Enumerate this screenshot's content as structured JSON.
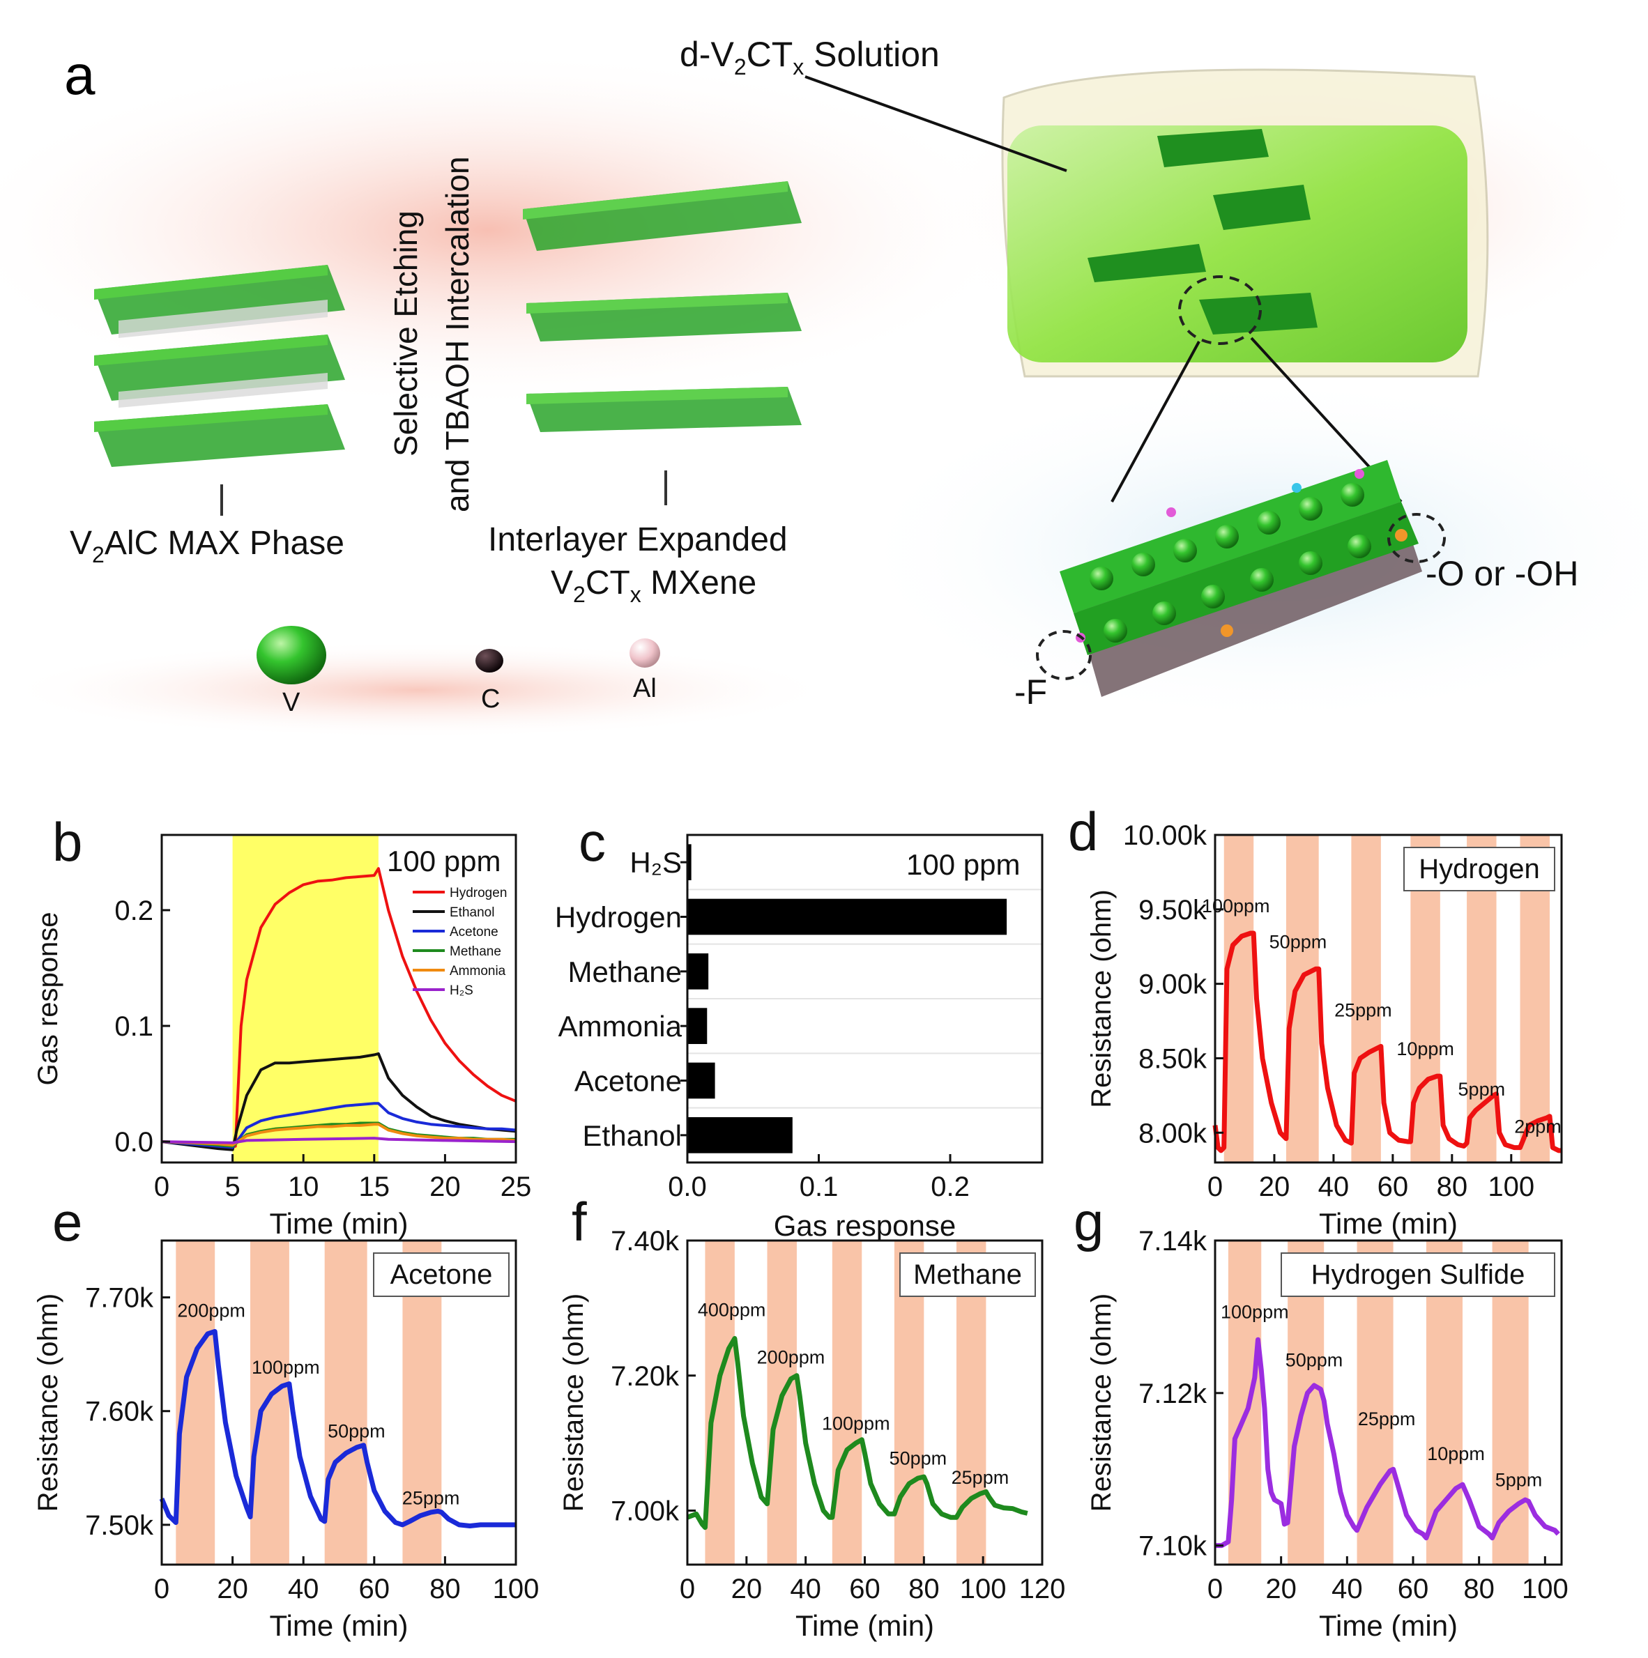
{
  "schematic": {
    "panel_label": "a",
    "solution_label": {
      "prefix": "d-V",
      "sub1": "2",
      "mid": "CT",
      "sub2": "x",
      "suffix": " Solution"
    },
    "max_phase_label": {
      "prefix": "V",
      "sub": "2",
      "suffix": "AlC MAX Phase"
    },
    "step_label_1": "Selective Etching",
    "step_label_2": "and TBAOH Intercalation",
    "mxene_label_1": "Interlayer Expanded",
    "mxene_label_2": {
      "prefix": "V",
      "sub1": "2",
      "mid": "CT",
      "sub2": "x",
      "suffix": " MXene"
    },
    "terminal_o_oh": "-O or -OH",
    "terminal_f": "-F",
    "legend": [
      {
        "symbol": "V",
        "color": "#2fb82f"
      },
      {
        "symbol": "C",
        "color": "#1a0c10"
      },
      {
        "symbol": "Al",
        "color": "#f3c9cf"
      }
    ]
  },
  "chart_data": [
    {
      "panel": "b",
      "type": "line",
      "title": "100 ppm",
      "xlabel": "Time (min)",
      "ylabel": "Gas response",
      "xlim": [
        0,
        25
      ],
      "ylim": [
        -0.018,
        0.265
      ],
      "xticks": [
        0,
        5,
        10,
        15,
        20,
        25
      ],
      "yticks": [
        0.0,
        0.1,
        0.2
      ],
      "ytick_labels": [
        "0.0",
        "0.1",
        "0.2"
      ],
      "highlight_range": [
        5,
        15.3
      ],
      "highlight_color": "#ffff66",
      "legend": [
        "Hydrogen",
        "Ethanol",
        "Acetone",
        "Methane",
        "Ammonia",
        "H₂S"
      ],
      "series": [
        {
          "name": "Hydrogen",
          "color": "#ee1111",
          "x": [
            0,
            2,
            4,
            5.2,
            5.6,
            6,
            7,
            8,
            9,
            10,
            11,
            12,
            13,
            14,
            15,
            15.3,
            16,
            17,
            18,
            19,
            20,
            21,
            22,
            23,
            24,
            25
          ],
          "y": [
            0,
            -0.002,
            -0.005,
            -0.004,
            0.1,
            0.14,
            0.185,
            0.205,
            0.215,
            0.222,
            0.225,
            0.226,
            0.228,
            0.229,
            0.23,
            0.236,
            0.2,
            0.16,
            0.13,
            0.105,
            0.085,
            0.07,
            0.058,
            0.048,
            0.04,
            0.035
          ]
        },
        {
          "name": "Ethanol",
          "color": "#111111",
          "x": [
            0,
            2,
            4,
            5,
            5.3,
            6,
            7,
            8,
            9,
            10,
            11,
            12,
            13,
            14,
            15,
            15.3,
            16,
            17,
            18,
            19,
            20,
            21,
            22,
            23,
            24,
            25
          ],
          "y": [
            0,
            -0.003,
            -0.006,
            -0.007,
            0.01,
            0.04,
            0.062,
            0.068,
            0.068,
            0.069,
            0.07,
            0.071,
            0.072,
            0.073,
            0.075,
            0.076,
            0.055,
            0.04,
            0.03,
            0.022,
            0.018,
            0.015,
            0.013,
            0.011,
            0.01,
            0.009
          ]
        },
        {
          "name": "Acetone",
          "color": "#1a2ad8",
          "x": [
            0,
            2,
            4,
            5,
            6,
            7,
            8,
            9,
            10,
            11,
            12,
            13,
            14,
            15,
            15.3,
            16,
            17,
            18,
            19,
            20,
            21,
            22,
            23,
            24,
            25
          ],
          "y": [
            0,
            -0.002,
            -0.004,
            -0.005,
            0.012,
            0.018,
            0.021,
            0.023,
            0.025,
            0.027,
            0.029,
            0.031,
            0.032,
            0.033,
            0.033,
            0.025,
            0.02,
            0.017,
            0.015,
            0.014,
            0.013,
            0.012,
            0.011,
            0.011,
            0.01
          ]
        },
        {
          "name": "Methane",
          "color": "#1e8a1e",
          "x": [
            0,
            2,
            4,
            5,
            6,
            7,
            8,
            9,
            10,
            11,
            12,
            13,
            14,
            15,
            15.3,
            16,
            17,
            18,
            19,
            20,
            21,
            22,
            23,
            24,
            25
          ],
          "y": [
            0,
            -0.001,
            -0.003,
            -0.004,
            0.006,
            0.009,
            0.011,
            0.012,
            0.013,
            0.014,
            0.015,
            0.015,
            0.016,
            0.016,
            0.016,
            0.011,
            0.008,
            0.006,
            0.005,
            0.004,
            0.003,
            0.003,
            0.002,
            0.002,
            0.002
          ]
        },
        {
          "name": "Ammonia",
          "color": "#f08a10",
          "x": [
            0,
            2,
            4,
            5,
            6,
            7,
            8,
            9,
            10,
            11,
            12,
            13,
            14,
            15,
            15.3,
            16,
            17,
            18,
            19,
            20,
            21,
            22,
            23,
            24,
            25
          ],
          "y": [
            0,
            -0.001,
            -0.002,
            -0.003,
            0.005,
            0.008,
            0.01,
            0.011,
            0.012,
            0.013,
            0.013,
            0.014,
            0.014,
            0.015,
            0.015,
            0.01,
            0.007,
            0.005,
            0.004,
            0.003,
            0.003,
            0.002,
            0.002,
            0.002,
            0.001
          ]
        },
        {
          "name": "H₂S",
          "color": "#9a22cc",
          "x": [
            0,
            5,
            6,
            10,
            15,
            16,
            20,
            25
          ],
          "y": [
            0,
            -0.001,
            0.001,
            0.002,
            0.003,
            0.002,
            0.001,
            0.0
          ]
        }
      ]
    },
    {
      "panel": "c",
      "type": "bar",
      "orientation": "horizontal",
      "title": "100 ppm",
      "xlabel": "Gas response",
      "xlim": [
        0,
        0.27
      ],
      "xticks": [
        0.0,
        0.1,
        0.2
      ],
      "xtick_labels": [
        "0.0",
        "0.1",
        "0.2"
      ],
      "categories": [
        "H₂S",
        "Hydrogen",
        "Methane",
        "Ammonia",
        "Acetone",
        "Ethanol"
      ],
      "values": [
        0.003,
        0.243,
        0.016,
        0.015,
        0.021,
        0.08
      ],
      "color": "#000000"
    },
    {
      "panel": "d",
      "type": "line",
      "title": "Hydrogen",
      "color": "#ee1111",
      "xlabel": "Time (min)",
      "ylabel": "Resistance (ohm)",
      "xlim": [
        0,
        117
      ],
      "ylim": [
        7800,
        10000
      ],
      "xticks": [
        0,
        20,
        40,
        60,
        80,
        100
      ],
      "yticks": [
        8000,
        8500,
        9000,
        9500,
        10000
      ],
      "ytick_labels": [
        "8.00k",
        "8.50k",
        "9.00k",
        "9.50k",
        "10.00k"
      ],
      "exposure_windows": [
        [
          3,
          13
        ],
        [
          24,
          35
        ],
        [
          46,
          56
        ],
        [
          66,
          76
        ],
        [
          85,
          95
        ],
        [
          103,
          113
        ]
      ],
      "annotations": [
        {
          "text": "100ppm",
          "x": 7,
          "y": 9480
        },
        {
          "text": "50ppm",
          "x": 28,
          "y": 9240
        },
        {
          "text": "25ppm",
          "x": 50,
          "y": 8780
        },
        {
          "text": "10ppm",
          "x": 71,
          "y": 8520
        },
        {
          "text": "5ppm",
          "x": 90,
          "y": 8250
        },
        {
          "text": "2ppm",
          "x": 109,
          "y": 8000
        }
      ],
      "x": [
        0,
        1,
        2,
        3,
        4,
        6,
        9,
        12,
        13,
        14,
        16,
        19,
        22,
        24,
        25,
        27,
        30,
        34,
        35,
        36,
        38,
        41,
        44,
        46,
        47,
        49,
        52,
        55,
        56,
        57,
        59,
        62,
        65,
        66,
        67,
        69,
        72,
        75,
        76,
        77,
        79,
        82,
        84,
        85,
        86,
        88,
        91,
        94,
        95,
        96,
        98,
        101,
        103,
        104,
        106,
        109,
        112,
        113,
        114,
        116,
        117
      ],
      "y": [
        8050,
        7900,
        7880,
        7900,
        9100,
        9260,
        9320,
        9340,
        9340,
        8900,
        8500,
        8200,
        8000,
        7960,
        8700,
        8950,
        9060,
        9100,
        9100,
        8600,
        8300,
        8050,
        7950,
        7930,
        8400,
        8500,
        8540,
        8570,
        8580,
        8200,
        8000,
        7950,
        7940,
        7940,
        8200,
        8300,
        8360,
        8380,
        8380,
        8050,
        7960,
        7920,
        7910,
        7930,
        8100,
        8150,
        8200,
        8250,
        8260,
        8000,
        7920,
        7900,
        7900,
        7950,
        8050,
        8080,
        8100,
        8110,
        7900,
        7880,
        7880
      ]
    },
    {
      "panel": "e",
      "type": "line",
      "title": "Acetone",
      "color": "#1a2ad8",
      "xlabel": "Time (min)",
      "ylabel": "Resistance (ohm)",
      "xlim": [
        0,
        100
      ],
      "ylim": [
        7465,
        7750
      ],
      "xticks": [
        0,
        20,
        40,
        60,
        80,
        100
      ],
      "yticks": [
        7500,
        7600,
        7700
      ],
      "ytick_labels": [
        "7.50k",
        "7.60k",
        "7.70k"
      ],
      "exposure_windows": [
        [
          4,
          15
        ],
        [
          25,
          36
        ],
        [
          46,
          58
        ],
        [
          68,
          79
        ]
      ],
      "annotations": [
        {
          "text": "200ppm",
          "x": 14,
          "y": 7683
        },
        {
          "text": "100ppm",
          "x": 35,
          "y": 7633
        },
        {
          "text": "50ppm",
          "x": 55,
          "y": 7577
        },
        {
          "text": "25ppm",
          "x": 76,
          "y": 7518
        }
      ],
      "x": [
        0,
        2,
        4,
        5,
        7,
        10,
        13,
        15,
        16,
        18,
        21,
        24,
        25,
        26,
        28,
        31,
        34,
        36,
        37,
        39,
        42,
        45,
        46,
        47,
        49,
        52,
        55,
        57,
        58,
        60,
        63,
        66,
        68,
        70,
        73,
        76,
        78,
        79,
        81,
        84,
        87,
        90,
        95,
        100
      ],
      "y": [
        7523,
        7508,
        7502,
        7580,
        7630,
        7655,
        7668,
        7670,
        7640,
        7590,
        7543,
        7515,
        7507,
        7560,
        7600,
        7615,
        7622,
        7624,
        7600,
        7560,
        7525,
        7505,
        7503,
        7540,
        7555,
        7563,
        7568,
        7570,
        7555,
        7530,
        7512,
        7502,
        7500,
        7503,
        7508,
        7511,
        7512,
        7511,
        7505,
        7500,
        7499,
        7500,
        7500,
        7500
      ]
    },
    {
      "panel": "f",
      "type": "line",
      "title": "Methane",
      "color": "#1e8a1e",
      "xlabel": "Time (min)",
      "ylabel": "Resistance (ohm)",
      "xlim": [
        0,
        120
      ],
      "ylim": [
        6920,
        7400
      ],
      "xticks": [
        0,
        20,
        40,
        60,
        80,
        100,
        120
      ],
      "yticks": [
        7000,
        7200,
        7400
      ],
      "ytick_labels": [
        "7.00k",
        "7.20k",
        "7.40k"
      ],
      "exposure_windows": [
        [
          6,
          16
        ],
        [
          27,
          37
        ],
        [
          49,
          59
        ],
        [
          70,
          80
        ],
        [
          91,
          101
        ]
      ],
      "annotations": [
        {
          "text": "400ppm",
          "x": 15,
          "y": 7288
        },
        {
          "text": "200ppm",
          "x": 35,
          "y": 7218
        },
        {
          "text": "100ppm",
          "x": 57,
          "y": 7120
        },
        {
          "text": "50ppm",
          "x": 78,
          "y": 7068
        },
        {
          "text": "25ppm",
          "x": 99,
          "y": 7040
        }
      ],
      "x": [
        0,
        3,
        5,
        6,
        8,
        11,
        14,
        16,
        17,
        19,
        22,
        25,
        27,
        29,
        32,
        35,
        37,
        38,
        40,
        43,
        46,
        48,
        49,
        51,
        54,
        57,
        59,
        60,
        62,
        65,
        68,
        70,
        72,
        75,
        78,
        80,
        81,
        83,
        86,
        89,
        91,
        93,
        96,
        99,
        101,
        102,
        104,
        107,
        110,
        113,
        115
      ],
      "y": [
        6990,
        6995,
        6980,
        6975,
        7130,
        7200,
        7240,
        7255,
        7220,
        7140,
        7070,
        7020,
        7010,
        7120,
        7170,
        7195,
        7200,
        7170,
        7100,
        7040,
        7000,
        6990,
        6990,
        7060,
        7090,
        7100,
        7105,
        7085,
        7040,
        7010,
        6995,
        6995,
        7020,
        7040,
        7048,
        7050,
        7040,
        7010,
        6995,
        6990,
        6990,
        7005,
        7018,
        7025,
        7028,
        7020,
        7008,
        7004,
        7003,
        6998,
        6996
      ]
    },
    {
      "panel": "g",
      "type": "line",
      "title": "Hydrogen Sulfide",
      "color": "#9b2de0",
      "xlabel": "Time (min)",
      "ylabel": "Resistance (ohm)",
      "xlim": [
        0,
        105
      ],
      "ylim": [
        7.0975,
        7.14
      ],
      "xticks": [
        0,
        20,
        40,
        60,
        80,
        100
      ],
      "yticks": [
        7.1,
        7.12,
        7.14
      ],
      "ytick_labels": [
        "7.10k",
        "7.12k",
        "7.14k"
      ],
      "exposure_windows": [
        [
          4,
          14
        ],
        [
          22,
          33
        ],
        [
          43,
          54
        ],
        [
          64,
          75
        ],
        [
          84,
          95
        ]
      ],
      "annotations": [
        {
          "text": "100ppm",
          "x": 12,
          "y": 7.1298
        },
        {
          "text": "50ppm",
          "x": 30,
          "y": 7.1235
        },
        {
          "text": "25ppm",
          "x": 52,
          "y": 7.1158
        },
        {
          "text": "10ppm",
          "x": 73,
          "y": 7.1112
        },
        {
          "text": "5ppm",
          "x": 92,
          "y": 7.1078
        }
      ],
      "x": [
        0,
        2,
        4,
        5,
        6,
        8,
        10,
        12,
        13,
        14,
        15,
        16,
        17,
        18,
        20,
        21,
        22,
        24,
        26,
        28,
        30,
        32,
        33,
        34,
        36,
        38,
        40,
        42,
        43,
        46,
        50,
        53,
        54,
        56,
        58,
        61,
        63,
        64,
        67,
        70,
        73,
        75,
        77,
        80,
        83,
        84,
        86,
        89,
        92,
        94,
        95,
        97,
        100,
        103,
        104
      ],
      "y": [
        7.1,
        7.1,
        7.1005,
        7.106,
        7.114,
        7.116,
        7.118,
        7.122,
        7.127,
        7.123,
        7.118,
        7.11,
        7.107,
        7.106,
        7.1055,
        7.1028,
        7.103,
        7.113,
        7.117,
        7.12,
        7.121,
        7.1205,
        7.119,
        7.116,
        7.112,
        7.107,
        7.104,
        7.1025,
        7.102,
        7.105,
        7.108,
        7.1098,
        7.11,
        7.107,
        7.104,
        7.102,
        7.1015,
        7.101,
        7.1045,
        7.106,
        7.1075,
        7.108,
        7.106,
        7.1025,
        7.1015,
        7.101,
        7.103,
        7.1045,
        7.1055,
        7.106,
        7.1058,
        7.104,
        7.1025,
        7.102,
        7.1015
      ]
    }
  ]
}
